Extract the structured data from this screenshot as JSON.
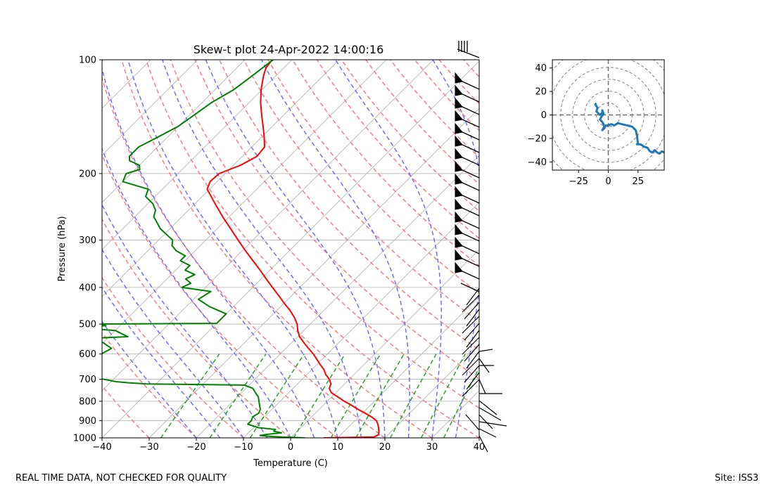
{
  "footer": {
    "quality_note": "REAL TIME DATA, NOT CHECKED FOR QUALITY",
    "site": "Site: ISS3"
  },
  "chart_data": [
    {
      "type": "skew-t",
      "title": "Skew-t plot 24-Apr-2022 14:00:16",
      "xlabel": "Temperature (C)",
      "ylabel": "Pressure (hPa)",
      "xlim": [
        -40,
        40
      ],
      "ylim": [
        1000,
        100
      ],
      "y_scale": "log",
      "x_ticks": [
        -40,
        -30,
        -20,
        -10,
        0,
        10,
        20,
        30,
        40
      ],
      "y_ticks": [
        1000,
        900,
        800,
        700,
        600,
        500,
        400,
        300,
        200,
        100
      ],
      "grid": true,
      "colors": {
        "temperature": "#ff0000",
        "dewpoint": "#008000",
        "dry_adiabat": "#f08080",
        "moist_adiabat": "#7070f0",
        "mixing_ratio": "#2ca02c",
        "isotherm": "#b4b4b4",
        "barb": "#000000"
      },
      "series": [
        {
          "name": "Temperature",
          "pressure": [
            1000,
            995,
            980,
            960,
            940,
            920,
            900,
            880,
            860,
            840,
            820,
            800,
            780,
            760,
            740,
            720,
            700,
            680,
            660,
            640,
            620,
            600,
            580,
            560,
            540,
            520,
            500,
            480,
            460,
            440,
            420,
            400,
            380,
            360,
            340,
            320,
            300,
            280,
            260,
            240,
            220,
            210,
            200,
            190,
            180,
            170,
            160,
            150,
            140,
            130,
            120,
            110,
            105,
            100
          ],
          "values": [
            7,
            17.5,
            18,
            17.3,
            16.5,
            15.6,
            14.5,
            12.7,
            10.5,
            8.2,
            6,
            3.6,
            1.4,
            -0.9,
            -2.3,
            -2.9,
            -4.2,
            -6,
            -7.4,
            -9.3,
            -11.1,
            -13,
            -15.2,
            -17.4,
            -19.6,
            -21.3,
            -22.8,
            -24.8,
            -27.2,
            -30,
            -32.8,
            -35.8,
            -38.9,
            -42.1,
            -45.6,
            -49.3,
            -53.1,
            -57.1,
            -61.4,
            -65.8,
            -70.5,
            -71.5,
            -71.3,
            -68.5,
            -66.9,
            -67.3,
            -69.5,
            -72,
            -74.7,
            -77.5,
            -80.2,
            -82.7,
            -83.8,
            -84.2
          ]
        },
        {
          "name": "Dewpoint",
          "pressure": [
            1000,
            995,
            990,
            985,
            980,
            970,
            960,
            950,
            940,
            920,
            900,
            880,
            860,
            840,
            820,
            800,
            780,
            760,
            740,
            725,
            720,
            715,
            710,
            700,
            690,
            680,
            670,
            660,
            650,
            640,
            620,
            600,
            580,
            560,
            545,
            540,
            530,
            520,
            510,
            505,
            500,
            498,
            490,
            470,
            450,
            430,
            410,
            400,
            390,
            380,
            370,
            360,
            350,
            340,
            330,
            320,
            310,
            300,
            280,
            260,
            250,
            240,
            230,
            220,
            210,
            200,
            195,
            190,
            185,
            180,
            175,
            170,
            165,
            160,
            150,
            140,
            130,
            120,
            110,
            100
          ],
          "values": [
            3,
            -2,
            -5,
            -7,
            -6,
            -3,
            -5,
            -5,
            -9,
            -12,
            -12,
            -12.5,
            -12,
            -12.5,
            -13.5,
            -14.5,
            -15.5,
            -17,
            -18.5,
            -21,
            -42,
            -46,
            -49,
            -52,
            -55,
            -60,
            -60,
            -61,
            -60,
            -56,
            -60,
            -58,
            -57,
            -60,
            -63,
            -56,
            -58,
            -60,
            -70,
            -63,
            -65,
            -40,
            -40,
            -40,
            -45,
            -49,
            -48,
            -55,
            -54,
            -56,
            -55,
            -58,
            -58,
            -61,
            -61,
            -64,
            -66,
            -67,
            -72,
            -76,
            -77,
            -79,
            -82,
            -83,
            -90,
            -91,
            -89,
            -90,
            -93,
            -94,
            -94,
            -94,
            -93,
            -92,
            -90,
            -89,
            -88,
            -86,
            -85,
            -84
          ]
        }
      ],
      "wind_barbs": {
        "levels": "profile from 1000 to 100 hPa",
        "orientation": "barbs plotted on right edge at x = 40 C"
      }
    },
    {
      "type": "hodograph",
      "xlim": [
        -47,
        47
      ],
      "ylim": [
        -47,
        47
      ],
      "x_ticks": [
        -25,
        0,
        25
      ],
      "y_ticks": [
        -40,
        -20,
        0,
        20,
        40
      ],
      "rings": [
        10,
        20,
        30,
        40,
        50,
        60
      ],
      "color": "#1f77b4",
      "series": [
        {
          "u": [
            -10,
            -11,
            -9,
            -10,
            -8,
            -7,
            -5,
            -5,
            -4,
            -6,
            -7,
            -5,
            -4,
            -3,
            -5,
            -4,
            -2,
            0,
            2,
            3,
            5,
            8,
            12,
            16,
            20,
            23,
            24,
            25,
            24,
            27,
            30,
            33,
            35,
            37,
            39,
            41,
            43,
            45,
            47
          ],
          "v": [
            10,
            9,
            6,
            3,
            1,
            0,
            2,
            4,
            1,
            -2,
            -4,
            -6,
            -8,
            -11,
            -13,
            -11,
            -9,
            -9,
            -8,
            -8,
            -9,
            -7,
            -8,
            -9,
            -10,
            -13,
            -17,
            -25,
            -25,
            -25,
            -27,
            -28,
            -31,
            -32,
            -30,
            -32,
            -33,
            -31,
            -32
          ]
        }
      ]
    }
  ]
}
